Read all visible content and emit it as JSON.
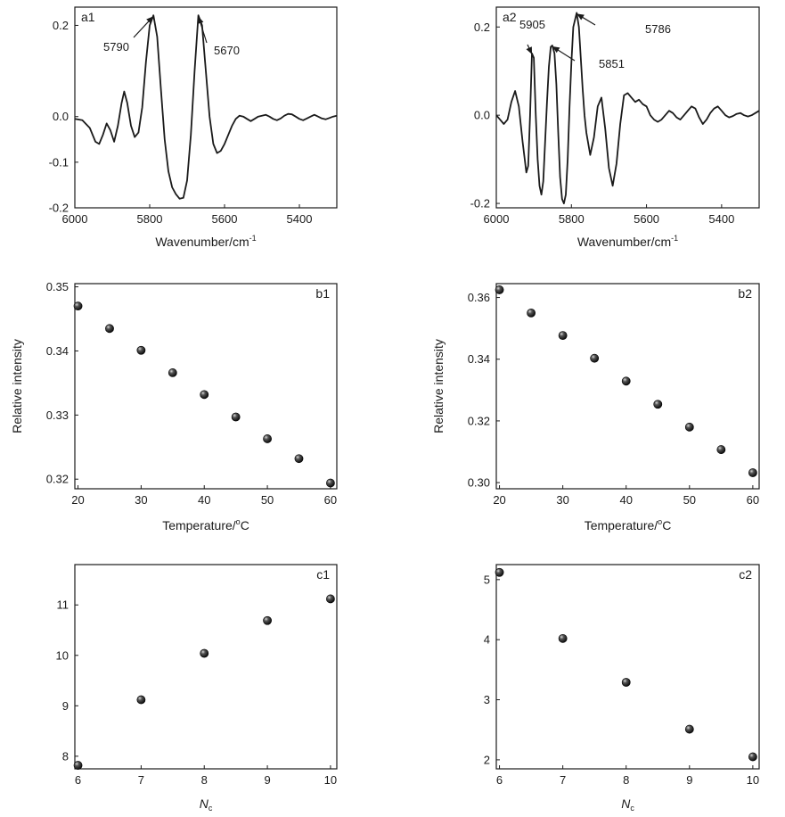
{
  "chart_data": [
    {
      "id": "a1",
      "type": "line",
      "panel_label": "a1",
      "xlabel": "Wavenumber/cm",
      "xlabel_sup": "-1",
      "ylabel": "",
      "xlim": [
        6000,
        5300
      ],
      "ylim": [
        -0.2,
        0.24
      ],
      "xticks": [
        6000,
        5800,
        5600,
        5400
      ],
      "yticks": [
        0.2,
        0.0,
        -0.1,
        -0.2
      ],
      "ytick_labels": [
        "0.2",
        "0.0",
        "-0.1",
        "-0.2"
      ],
      "series": [
        {
          "x": [
            6000,
            5980,
            5960,
            5945,
            5935,
            5925,
            5915,
            5905,
            5895,
            5885,
            5875,
            5868,
            5860,
            5850,
            5840,
            5830,
            5820,
            5810,
            5800,
            5790,
            5780,
            5770,
            5760,
            5750,
            5740,
            5730,
            5720,
            5710,
            5700,
            5690,
            5680,
            5670,
            5660,
            5650,
            5640,
            5630,
            5620,
            5610,
            5600,
            5590,
            5580,
            5570,
            5560,
            5550,
            5540,
            5530,
            5520,
            5510,
            5500,
            5490,
            5480,
            5470,
            5460,
            5450,
            5440,
            5430,
            5420,
            5410,
            5400,
            5390,
            5380,
            5370,
            5360,
            5350,
            5340,
            5330,
            5320,
            5310,
            5300
          ],
          "y": [
            -0.005,
            -0.008,
            -0.025,
            -0.055,
            -0.06,
            -0.04,
            -0.015,
            -0.03,
            -0.055,
            -0.02,
            0.03,
            0.055,
            0.03,
            -0.02,
            -0.045,
            -0.035,
            0.02,
            0.12,
            0.2,
            0.222,
            0.175,
            0.06,
            -0.05,
            -0.12,
            -0.155,
            -0.17,
            -0.18,
            -0.178,
            -0.14,
            -0.04,
            0.1,
            0.222,
            0.2,
            0.1,
            0.0,
            -0.06,
            -0.08,
            -0.075,
            -0.06,
            -0.04,
            -0.02,
            -0.005,
            0.002,
            0.0,
            -0.005,
            -0.01,
            -0.005,
            0.0,
            0.002,
            0.004,
            0.0,
            -0.005,
            -0.008,
            -0.004,
            0.002,
            0.006,
            0.005,
            0.0,
            -0.005,
            -0.008,
            -0.004,
            0.0,
            0.004,
            0.0,
            -0.004,
            -0.006,
            -0.003,
            0.0,
            0.002
          ]
        }
      ],
      "annotations": [
        {
          "text": "5790",
          "x": 5790,
          "y": 0.222
        },
        {
          "text": "5670",
          "x": 5670,
          "y": 0.222
        }
      ]
    },
    {
      "id": "a2",
      "type": "line",
      "panel_label": "a2",
      "xlabel": "Wavenumber/cm",
      "xlabel_sup": "-1",
      "ylabel": "",
      "xlim": [
        6000,
        5300
      ],
      "ylim": [
        -0.21,
        0.245
      ],
      "xticks": [
        6000,
        5800,
        5600,
        5400
      ],
      "yticks": [
        0.2,
        0.0,
        -0.2
      ],
      "ytick_labels": [
        "0.2",
        "0.0",
        "-0.2"
      ],
      "series": [
        {
          "x": [
            6000,
            5990,
            5980,
            5970,
            5960,
            5950,
            5940,
            5930,
            5920,
            5915,
            5910,
            5905,
            5900,
            5895,
            5890,
            5885,
            5880,
            5875,
            5870,
            5865,
            5860,
            5855,
            5851,
            5845,
            5840,
            5835,
            5830,
            5825,
            5820,
            5815,
            5810,
            5805,
            5800,
            5795,
            5786,
            5780,
            5775,
            5770,
            5765,
            5760,
            5750,
            5740,
            5730,
            5720,
            5710,
            5700,
            5690,
            5680,
            5670,
            5660,
            5650,
            5640,
            5630,
            5620,
            5610,
            5600,
            5590,
            5580,
            5570,
            5560,
            5550,
            5540,
            5530,
            5520,
            5510,
            5500,
            5490,
            5480,
            5470,
            5460,
            5450,
            5440,
            5430,
            5420,
            5410,
            5400,
            5390,
            5380,
            5370,
            5360,
            5350,
            5340,
            5330,
            5320,
            5310,
            5300
          ],
          "y": [
            0.0,
            -0.01,
            -0.02,
            -0.01,
            0.03,
            0.055,
            0.02,
            -0.06,
            -0.13,
            -0.115,
            0.0,
            0.14,
            0.13,
            0.0,
            -0.1,
            -0.16,
            -0.18,
            -0.15,
            -0.06,
            0.03,
            0.11,
            0.155,
            0.158,
            0.14,
            0.07,
            -0.04,
            -0.14,
            -0.19,
            -0.2,
            -0.18,
            -0.1,
            0.02,
            0.12,
            0.2,
            0.232,
            0.2,
            0.13,
            0.06,
            0.0,
            -0.04,
            -0.09,
            -0.05,
            0.02,
            0.04,
            -0.03,
            -0.12,
            -0.16,
            -0.11,
            -0.02,
            0.045,
            0.05,
            0.04,
            0.03,
            0.035,
            0.025,
            0.02,
            0.0,
            -0.01,
            -0.015,
            -0.01,
            0.0,
            0.01,
            0.005,
            -0.005,
            -0.01,
            0.0,
            0.01,
            0.02,
            0.015,
            -0.005,
            -0.02,
            -0.01,
            0.005,
            0.015,
            0.02,
            0.01,
            0.0,
            -0.005,
            -0.002,
            0.003,
            0.005,
            0.0,
            -0.003,
            0.0,
            0.005,
            0.01
          ]
        }
      ],
      "annotations": [
        {
          "text": "5905",
          "x": 5905,
          "y": 0.14
        },
        {
          "text": "5851",
          "x": 5851,
          "y": 0.158
        },
        {
          "text": "5786",
          "x": 5786,
          "y": 0.232
        }
      ]
    },
    {
      "id": "b1",
      "type": "scatter",
      "panel_label": "b1",
      "xlabel": "Temperature/",
      "xlabel_sup": "o",
      "xlabel_suffix": "C",
      "ylabel": "Relative intensity",
      "xlim": [
        19.5,
        61
      ],
      "ylim": [
        0.3185,
        0.3505
      ],
      "xticks": [
        20,
        30,
        40,
        50,
        60
      ],
      "yticks": [
        0.32,
        0.33,
        0.34,
        0.35
      ],
      "ytick_labels": [
        "0.32",
        "0.33",
        "0.34",
        "0.35"
      ],
      "series": [
        {
          "x": [
            20,
            25,
            30,
            35,
            40,
            45,
            50,
            55,
            60
          ],
          "y": [
            0.347,
            0.3435,
            0.3401,
            0.3366,
            0.3332,
            0.3297,
            0.3263,
            0.3232,
            0.3194
          ]
        }
      ]
    },
    {
      "id": "b2",
      "type": "scatter",
      "panel_label": "b2",
      "xlabel": "Temperature/",
      "xlabel_sup": "o",
      "xlabel_suffix": "C",
      "ylabel": "Relative intensity",
      "xlim": [
        19.5,
        61
      ],
      "ylim": [
        0.298,
        0.3645
      ],
      "xticks": [
        20,
        30,
        40,
        50,
        60
      ],
      "yticks": [
        0.3,
        0.32,
        0.34,
        0.36
      ],
      "ytick_labels": [
        "0.30",
        "0.32",
        "0.34",
        "0.36"
      ],
      "series": [
        {
          "x": [
            20,
            25,
            30,
            35,
            40,
            45,
            50,
            55,
            60
          ],
          "y": [
            0.3625,
            0.355,
            0.3477,
            0.3403,
            0.3329,
            0.3254,
            0.318,
            0.3107,
            0.3032
          ]
        }
      ]
    },
    {
      "id": "c1",
      "type": "scatter",
      "panel_label": "c1",
      "xlabel": "N",
      "xlabel_sub": "c",
      "ylabel": "",
      "xlim": [
        5.95,
        10.1
      ],
      "ylim": [
        7.75,
        11.8
      ],
      "xticks": [
        6,
        7,
        8,
        9,
        10
      ],
      "yticks": [
        8,
        9,
        10,
        11
      ],
      "ytick_labels": [
        "8",
        "9",
        "10",
        "11"
      ],
      "series": [
        {
          "x": [
            6,
            7,
            8,
            9,
            10
          ],
          "y": [
            7.82,
            9.12,
            10.04,
            10.69,
            11.12
          ]
        }
      ]
    },
    {
      "id": "c2",
      "type": "scatter",
      "panel_label": "c2",
      "xlabel": "N",
      "xlabel_sub": "c",
      "ylabel": "",
      "xlim": [
        5.95,
        10.1
      ],
      "ylim": [
        1.85,
        5.25
      ],
      "xticks": [
        6,
        7,
        8,
        9,
        10
      ],
      "yticks": [
        2,
        3,
        4,
        5
      ],
      "ytick_labels": [
        "2",
        "3",
        "4",
        "5"
      ],
      "series": [
        {
          "x": [
            6,
            7,
            8,
            9,
            10
          ],
          "y": [
            5.12,
            4.02,
            3.29,
            2.51,
            2.05
          ]
        }
      ]
    }
  ]
}
